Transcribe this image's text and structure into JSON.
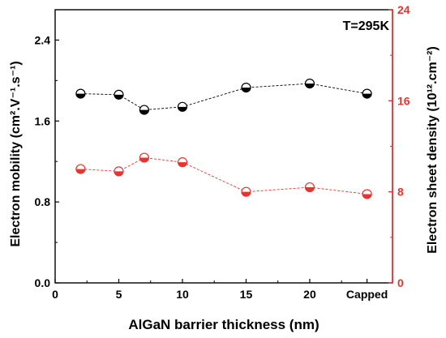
{
  "chart_data": {
    "type": "scatter",
    "annotation": "T=295K",
    "xlabel": "AlGaN barrier thickness (nm)",
    "ylabel_left": "Electron mobility (cm².V⁻¹.s⁻¹)",
    "ylabel_right": "Electron sheet density (10¹².cm⁻²)",
    "x_ticks": [
      {
        "value": 0,
        "label": "0"
      },
      {
        "value": 5,
        "label": "5"
      },
      {
        "value": 10,
        "label": "10"
      },
      {
        "value": 15,
        "label": "15"
      },
      {
        "value": 20,
        "label": "20"
      },
      {
        "value": 24.5,
        "label": "Capped"
      }
    ],
    "xlim": [
      0,
      26.5
    ],
    "ylim_left": [
      0,
      2.7
    ],
    "ylim_right": [
      0,
      24
    ],
    "yticks_left": [
      "0.0",
      "0.8",
      "1.6",
      "2.4"
    ],
    "yticks_right": [
      "0",
      "8",
      "16",
      "24"
    ],
    "grid": false,
    "series": [
      {
        "axis": "left",
        "color": "#000000",
        "marker": "half-filled-circle",
        "x": [
          2,
          5,
          7,
          10,
          15,
          20,
          24.5
        ],
        "values": [
          1.87,
          1.86,
          1.71,
          1.74,
          1.93,
          1.97,
          1.87
        ]
      },
      {
        "axis": "right",
        "color": "#e8342e",
        "marker": "half-filled-circle",
        "x": [
          2,
          5,
          7,
          10,
          15,
          20,
          24.5
        ],
        "values": [
          10.0,
          9.8,
          11.0,
          10.6,
          8.0,
          8.4,
          7.8
        ]
      }
    ]
  }
}
